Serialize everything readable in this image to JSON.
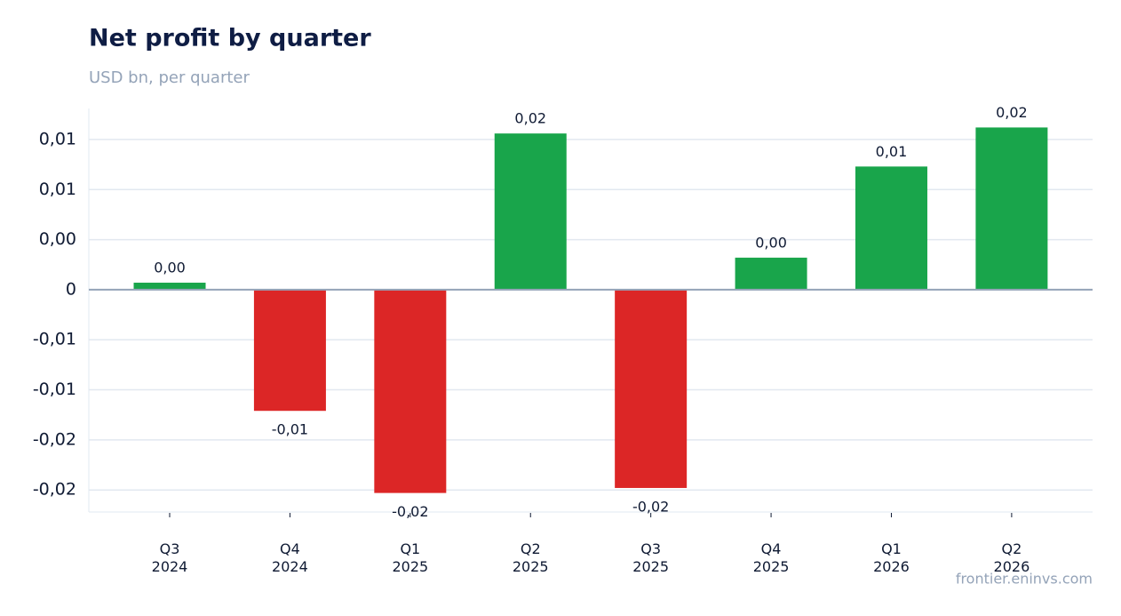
{
  "chart_data": {
    "type": "bar",
    "title": "Net profit by quarter",
    "subtitle": "USD bn, per quarter",
    "source": "frontier.eninvs.com",
    "categories": [
      "Q3 2024",
      "Q4 2024",
      "Q1 2025",
      "Q2 2025",
      "Q3 2025",
      "Q4 2025",
      "Q1 2026",
      "Q2 2026"
    ],
    "values": [
      0.0007,
      -0.0121,
      -0.0203,
      0.0156,
      -0.0198,
      0.0032,
      0.0123,
      0.0162
    ],
    "value_labels": [
      "0,00",
      "-0,01",
      "-0,02",
      "0,02",
      "-0,02",
      "0,00",
      "0,01",
      "0,02"
    ],
    "positive_color": "#19a54b",
    "negative_color": "#dc2626",
    "ylim": [
      -0.0222,
      0.0181
    ],
    "yticks": [
      {
        "value": 0.015,
        "label": "0,01"
      },
      {
        "value": 0.01,
        "label": "0,01"
      },
      {
        "value": 0.005,
        "label": "0,00"
      },
      0,
      {
        "value": -0.005,
        "label": "-0,01"
      },
      {
        "value": -0.01,
        "label": "-0,01"
      },
      {
        "value": -0.015,
        "label": "-0,02"
      },
      {
        "value": -0.02,
        "label": "-0,02"
      }
    ],
    "grid": true
  }
}
